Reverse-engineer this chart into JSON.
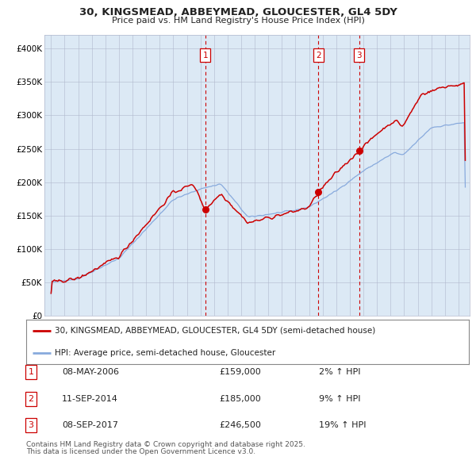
{
  "title_line1": "30, KINGSMEAD, ABBEYMEAD, GLOUCESTER, GL4 5DY",
  "title_line2": "Price paid vs. HM Land Registry's House Price Index (HPI)",
  "background_color": "#dce9f5",
  "outer_bg_color": "#ffffff",
  "red_line_color": "#cc0000",
  "blue_line_color": "#88aadd",
  "dashed_vline_color": "#cc0000",
  "sale_points": [
    {
      "date_x": 2006.35,
      "price": 159000,
      "label": "1",
      "date_str": "08-MAY-2006",
      "pct": "2%"
    },
    {
      "date_x": 2014.69,
      "price": 185000,
      "label": "2",
      "date_str": "11-SEP-2014",
      "pct": "9%"
    },
    {
      "date_x": 2017.69,
      "price": 246500,
      "label": "3",
      "date_str": "08-SEP-2017",
      "pct": "19%"
    }
  ],
  "ylim_min": 0,
  "ylim_max": 420000,
  "xlim_min": 1994.5,
  "xlim_max": 2025.8,
  "yticks": [
    0,
    50000,
    100000,
    150000,
    200000,
    250000,
    300000,
    350000,
    400000
  ],
  "ytick_labels": [
    "£0",
    "£50K",
    "£100K",
    "£150K",
    "£200K",
    "£250K",
    "£300K",
    "£350K",
    "£400K"
  ],
  "xticks": [
    1995,
    1996,
    1997,
    1998,
    1999,
    2000,
    2001,
    2002,
    2003,
    2004,
    2005,
    2006,
    2007,
    2008,
    2009,
    2010,
    2011,
    2012,
    2013,
    2014,
    2015,
    2016,
    2017,
    2018,
    2019,
    2020,
    2021,
    2022,
    2023,
    2024,
    2025
  ],
  "legend_line1": "30, KINGSMEAD, ABBEYMEAD, GLOUCESTER, GL4 5DY (semi-detached house)",
  "legend_line2": "HPI: Average price, semi-detached house, Gloucester",
  "footnote_line1": "Contains HM Land Registry data © Crown copyright and database right 2025.",
  "footnote_line2": "This data is licensed under the Open Government Licence v3.0.",
  "box_color": "#cc0000"
}
